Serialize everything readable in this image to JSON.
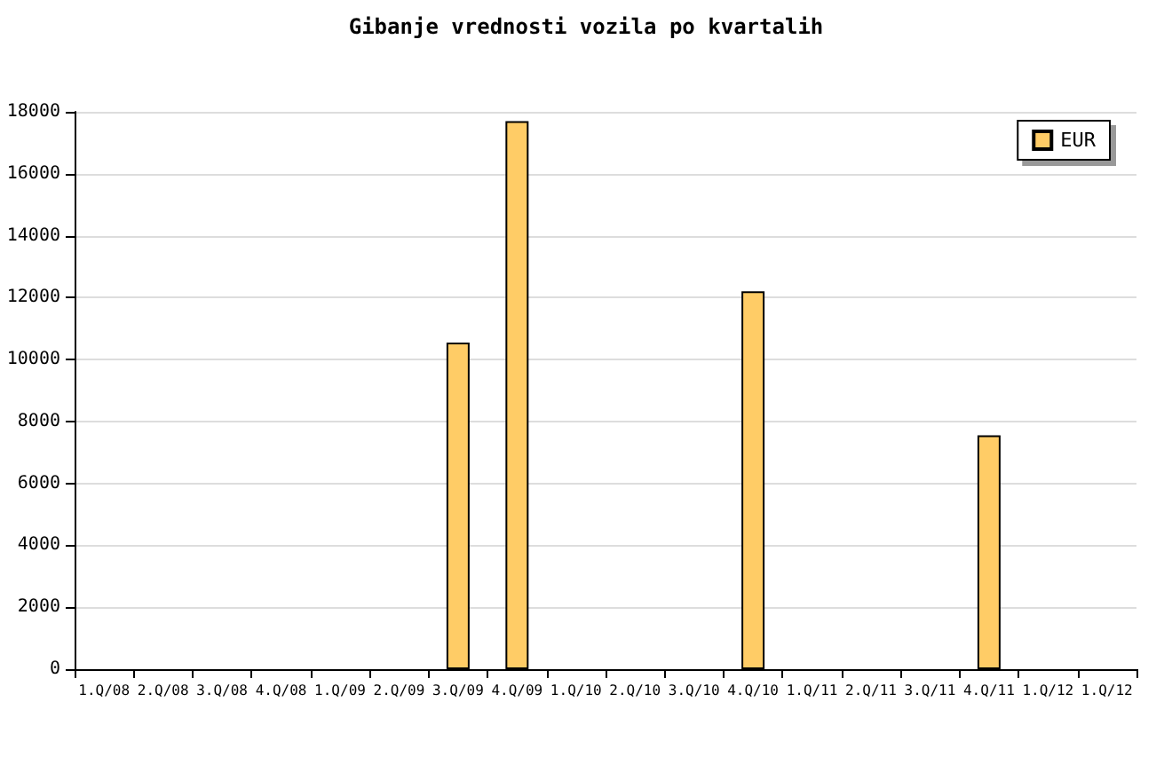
{
  "chart_data": {
    "type": "bar",
    "title": "Gibanje vrednosti vozila po kvartalih",
    "categories": [
      "1.Q/08",
      "2.Q/08",
      "3.Q/08",
      "4.Q/08",
      "1.Q/09",
      "2.Q/09",
      "3.Q/09",
      "4.Q/09",
      "1.Q/10",
      "2.Q/10",
      "3.Q/10",
      "4.Q/10",
      "1.Q/11",
      "2.Q/11",
      "3.Q/11",
      "4.Q/11",
      "1.Q/12",
      "1.Q/12"
    ],
    "series": [
      {
        "name": "EUR",
        "color": "#ffcc66",
        "values": [
          null,
          null,
          null,
          null,
          null,
          null,
          10550,
          17700,
          null,
          null,
          null,
          12200,
          null,
          null,
          null,
          7550,
          null,
          null
        ]
      }
    ],
    "ylim": [
      0,
      18000
    ],
    "yticks": [
      0,
      2000,
      4000,
      6000,
      8000,
      10000,
      12000,
      14000,
      16000,
      18000
    ],
    "grid": "y",
    "legend": "top right"
  }
}
